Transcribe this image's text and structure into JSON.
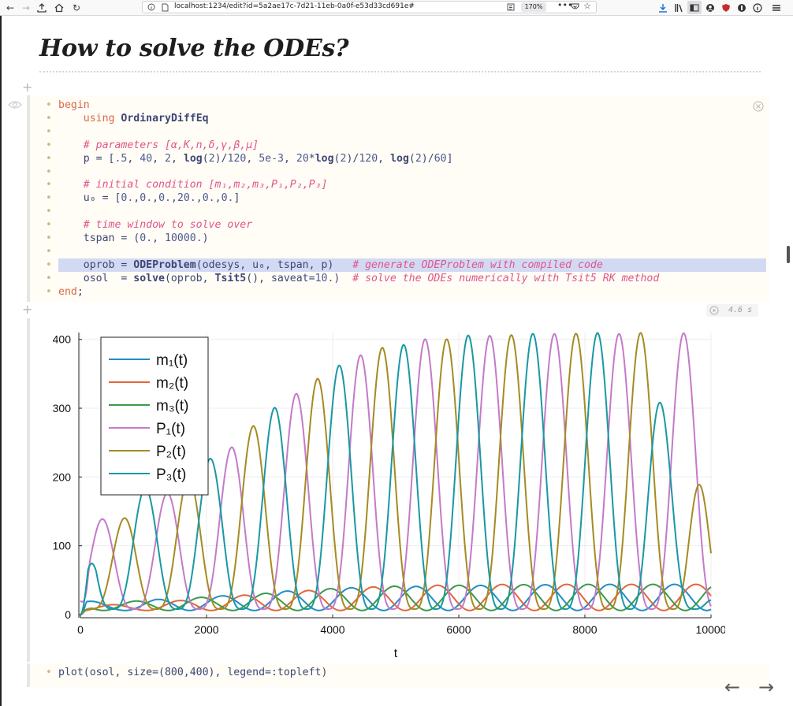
{
  "browser": {
    "url": "localhost:1234/edit?id=5a2ae17c-7d21-11eb-0a0f-e53d33cd691e#",
    "zoom": "170%",
    "nav": {
      "back": "←",
      "forward": "→",
      "reload": "↻"
    }
  },
  "heading": "How to solve the ODEs?",
  "code_cell": {
    "runtime": "4.6 s",
    "lines": [
      "begin",
      "    using OrdinaryDiffEq",
      "",
      "    # parameters [α,K,n,δ,γ,β,μ]",
      "    p = [.5, 40, 2, log(2)/120, 5e-3, 20*log(2)/120, log(2)/60]",
      "",
      "    # initial condition [m₁,m₂,m₃,P₁,P₂,P₃]",
      "    u₀ = [0.,0.,0.,20.,0.,0.]",
      "",
      "    # time window to solve over",
      "    tspan = (0., 10000.)",
      "",
      "    oprob = ODEProblem(odesys, u₀, tspan, p)   # generate ODEProblem with compiled code",
      "    osol  = solve(oprob, Tsit5(), saveat=10.)  # solve the ODEs numerically with Tsit5 RK method",
      "end;"
    ]
  },
  "plot_cell": {
    "code": "plot(osol, size=(800,400), legend=:topleft)"
  },
  "page_nav": {
    "prev": "←",
    "next": "→"
  },
  "chart_data": {
    "type": "line",
    "title": "",
    "xlabel": "t",
    "ylabel": "",
    "xlim": [
      0,
      10000
    ],
    "ylim": [
      0,
      410
    ],
    "xticks": [
      0,
      2000,
      4000,
      6000,
      8000,
      10000
    ],
    "yticks": [
      0,
      100,
      200,
      300,
      400
    ],
    "grid": true,
    "legend": "top-left",
    "period": 1025,
    "series": [
      {
        "name": "m₁(t)",
        "color": "#1f8dc8",
        "kind": "mRNA",
        "phase": 0.0,
        "values": [
          [
            0,
            0
          ],
          [
            100,
            20
          ],
          [
            600,
            16
          ],
          [
            1200,
            22
          ],
          [
            2400,
            28
          ],
          [
            3800,
            38
          ],
          [
            4800,
            40
          ],
          [
            5900,
            42
          ],
          [
            6900,
            43
          ],
          [
            7900,
            44
          ],
          [
            8900,
            44
          ],
          [
            10000,
            44
          ]
        ]
      },
      {
        "name": "m₂(t)",
        "color": "#e0673c",
        "kind": "mRNA",
        "phase": 0.333,
        "values": [
          [
            0,
            0
          ],
          [
            150,
            15
          ],
          [
            800,
            14
          ],
          [
            2000,
            24
          ],
          [
            3400,
            34
          ],
          [
            4800,
            41
          ],
          [
            5900,
            43
          ],
          [
            6900,
            44
          ],
          [
            7900,
            44
          ],
          [
            10000,
            44
          ]
        ]
      },
      {
        "name": "m₃(t)",
        "color": "#3a9a48",
        "kind": "mRNA",
        "phase": 0.667,
        "values": [
          [
            0,
            0
          ],
          [
            200,
            18
          ],
          [
            1000,
            20
          ],
          [
            2800,
            30
          ],
          [
            4300,
            40
          ],
          [
            5400,
            42
          ],
          [
            6500,
            43
          ],
          [
            7500,
            44
          ],
          [
            8500,
            44
          ],
          [
            10000,
            44
          ]
        ]
      },
      {
        "name": "P₁(t)",
        "color": "#c47ac9",
        "kind": "protein",
        "phase": 0.333,
        "values": [
          [
            0,
            20
          ],
          [
            150,
            133
          ],
          [
            1200,
            165
          ],
          [
            2500,
            250
          ],
          [
            3900,
            358
          ],
          [
            4900,
            393
          ],
          [
            5400,
            400
          ],
          [
            6400,
            405
          ],
          [
            7400,
            408
          ],
          [
            8400,
            408
          ],
          [
            9400,
            409
          ],
          [
            10000,
            409
          ]
        ]
      },
      {
        "name": "P₂(t)",
        "color": "#a58b22",
        "kind": "protein",
        "phase": 0.667,
        "values": [
          [
            0,
            0
          ],
          [
            300,
            112
          ],
          [
            800,
            148
          ],
          [
            2000,
            215
          ],
          [
            3400,
            327
          ],
          [
            4900,
            393
          ],
          [
            6400,
            405
          ],
          [
            7400,
            408
          ],
          [
            8400,
            409
          ],
          [
            9500,
            410
          ],
          [
            10000,
            100
          ]
        ]
      },
      {
        "name": "P₃(t)",
        "color": "#1998a3",
        "kind": "protein",
        "phase": 0.0,
        "values": [
          [
            0,
            0
          ],
          [
            250,
            165
          ],
          [
            1700,
            200
          ],
          [
            2900,
            290
          ],
          [
            4400,
            380
          ],
          [
            5900,
            405
          ],
          [
            6900,
            408
          ],
          [
            7900,
            409
          ],
          [
            8900,
            410
          ],
          [
            10000,
            45
          ]
        ]
      }
    ]
  }
}
